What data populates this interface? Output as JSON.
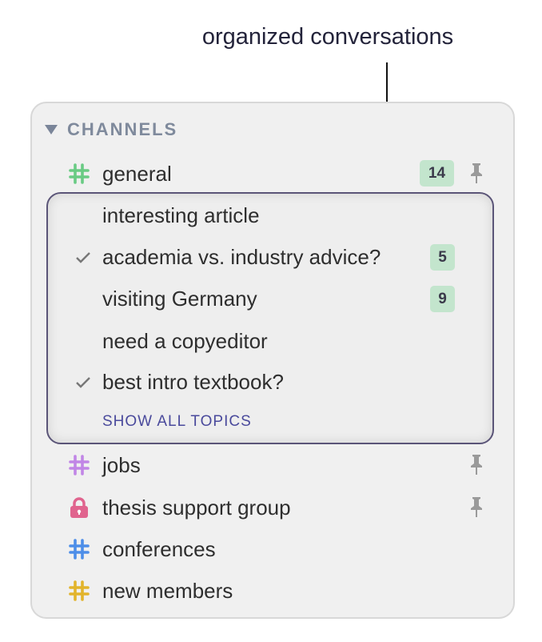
{
  "callout": "organized conversations",
  "section": {
    "title": "CHANNELS",
    "icon": "triangle-down-icon"
  },
  "channels": [
    {
      "name": "general",
      "icon": "hash-icon",
      "color": "#6acb84",
      "unread": "14",
      "pinned": true
    },
    {
      "name": "jobs",
      "icon": "hash-icon",
      "color": "#c186e6",
      "pinned": true
    },
    {
      "name": "thesis support group",
      "icon": "lock-icon",
      "color": "#e0648e",
      "pinned": true
    },
    {
      "name": "conferences",
      "icon": "hash-icon",
      "color": "#4d8ee8",
      "pinned": false
    },
    {
      "name": "new members",
      "icon": "hash-icon",
      "color": "#e2b42c",
      "pinned": false
    }
  ],
  "topics": [
    {
      "name": "interesting article",
      "resolved": false
    },
    {
      "name": "academia vs. industry advice?",
      "resolved": true,
      "unread": "5"
    },
    {
      "name": "visiting Germany",
      "resolved": false,
      "unread": "9"
    },
    {
      "name": "need a copyeditor",
      "resolved": false
    },
    {
      "name": "best intro textbook?",
      "resolved": true
    }
  ],
  "show_all_label": "SHOW ALL TOPICS",
  "colors": {
    "badge": "#c3e5cd",
    "accent": "#4a4a9c",
    "border": "#5b5578"
  }
}
